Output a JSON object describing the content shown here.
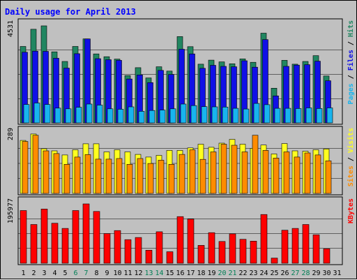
{
  "chart_data": {
    "type": "bar",
    "title": "Daily usage for April 2013",
    "categories": [
      "1",
      "2",
      "3",
      "4",
      "5",
      "6",
      "7",
      "8",
      "9",
      "10",
      "11",
      "12",
      "13",
      "14",
      "15",
      "16",
      "17",
      "18",
      "19",
      "20",
      "21",
      "22",
      "23",
      "24",
      "25",
      "26",
      "27",
      "28",
      "29",
      "30",
      "31"
    ],
    "weekend_days": [
      "6",
      "7",
      "13",
      "14",
      "20",
      "21",
      "27",
      "28"
    ],
    "panels": [
      {
        "id": "hits-panel",
        "max_label": "4531",
        "ylim": [
          0,
          4531
        ],
        "legend": [
          "Pages",
          "Files",
          "Hits"
        ],
        "series": [
          {
            "name": "Hits",
            "color": "#218661",
            "values": [
              3570,
              4370,
              4531,
              3320,
              2870,
              3570,
              3920,
              3220,
              3090,
              2980,
              2210,
              2580,
              2100,
              2620,
              2420,
              4030,
              3560,
              2740,
              2930,
              2850,
              2760,
              2990,
              2830,
              4190,
              1620,
              2920,
              2740,
              2870,
              3140,
              2190,
              0
            ]
          },
          {
            "name": "Files",
            "color": "#1010e6",
            "values": [
              3300,
              3350,
              3340,
              3020,
              2560,
              3230,
              3920,
              3000,
              2950,
              2920,
              2050,
              2240,
              1880,
              2450,
              2260,
              3440,
              3220,
              2550,
              2690,
              2640,
              2620,
              2900,
              2600,
              3890,
              1260,
              2640,
              2700,
              2720,
              2880,
              1970,
              0
            ]
          },
          {
            "name": "Pages",
            "color": "#18b4ee",
            "values": [
              860,
              930,
              860,
              690,
              660,
              730,
              880,
              830,
              660,
              640,
              750,
              540,
              580,
              600,
              660,
              880,
              810,
              760,
              750,
              740,
              680,
              650,
              910,
              850,
              680,
              680,
              670,
              700,
              670,
              700,
              0
            ]
          }
        ]
      },
      {
        "id": "visits-panel",
        "max_label": "289",
        "ylim": [
          0,
          289
        ],
        "legend": [
          "Sites",
          "Visits"
        ],
        "series": [
          {
            "name": "Visits",
            "color": "#ffff20",
            "values": [
              255,
              286,
              215,
              205,
              185,
              210,
              239,
              239,
              200,
              210,
              200,
              188,
              175,
              183,
              207,
              207,
              219,
              237,
              222,
              242,
              260,
              237,
              217,
              233,
              190,
              240,
              205,
              203,
              210,
              214,
              0
            ]
          },
          {
            "name": "Sites",
            "color": "#ff8c00",
            "values": [
              250,
              280,
              205,
              192,
              140,
              175,
              187,
              165,
              165,
              168,
              140,
              168,
              144,
              160,
              140,
              188,
              210,
              164,
              200,
              237,
              232,
              200,
              280,
              207,
              170,
              200,
              175,
              195,
              185,
              157,
              0
            ]
          }
        ]
      },
      {
        "id": "kbytes-panel",
        "max_label": "195977",
        "ylim": [
          0,
          195977
        ],
        "legend": [
          "KBytes"
        ],
        "series": [
          {
            "name": "KBytes",
            "color": "#ff0000",
            "values": [
              174000,
              128000,
              179000,
              132000,
              115000,
              174000,
              195977,
              171000,
              98000,
              108000,
              78000,
              85000,
              43000,
              104000,
              38000,
              154000,
              146000,
              59000,
              101000,
              72000,
              97000,
              79000,
              73000,
              161000,
              17000,
              109000,
              115000,
              128000,
              94000,
              48000,
              0
            ]
          }
        ]
      }
    ]
  }
}
